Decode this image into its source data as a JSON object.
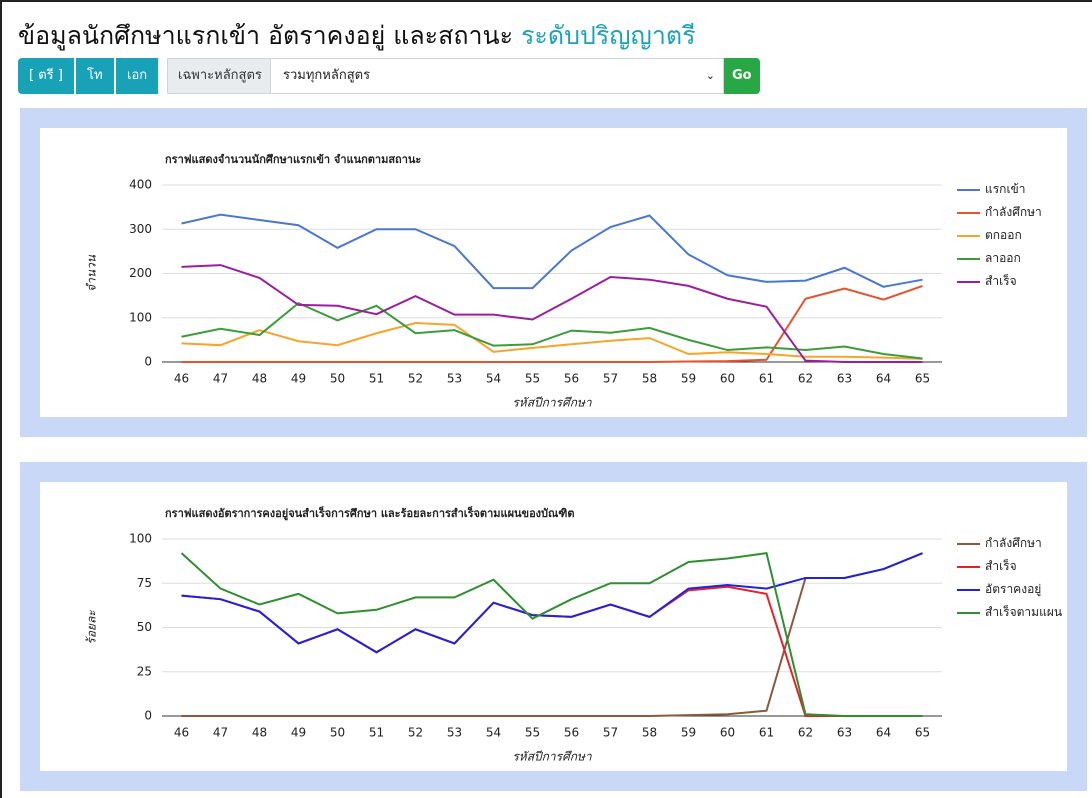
{
  "header": {
    "title": "ข้อมูลนักศึกษาแรกเข้า อัตราคงอยู่ และสถานะ",
    "title_highlight": "ระดับปริญญาตรี"
  },
  "toolbar": {
    "levels": [
      "[ ตรี ]",
      "โท",
      "เอก"
    ],
    "filter_label": "เฉพาะหลักสูตร",
    "select": "รวมทุกหลักสูตร",
    "button": "Go"
  },
  "chart_data": [
    {
      "type": "line",
      "title": "กราฟแสดงจำนวนนักศึกษาแรกเข้า จำแนกตามสถานะ",
      "xlabel": "รหัสปีการศึกษา",
      "ylabel": "จำนวน",
      "categories": [
        "46",
        "47",
        "48",
        "49",
        "50",
        "51",
        "52",
        "53",
        "54",
        "55",
        "56",
        "57",
        "58",
        "59",
        "60",
        "61",
        "62",
        "63",
        "64",
        "65"
      ],
      "ylim": [
        0,
        400
      ],
      "yticks": [
        0,
        100,
        200,
        300,
        400
      ],
      "grid": true,
      "series": [
        {
          "name": "แรกเข้า",
          "color": "#4a78d0",
          "values": [
            313,
            333,
            321,
            309,
            258,
            300,
            300,
            262,
            167,
            167,
            252,
            305,
            331,
            243,
            196,
            181,
            184,
            213,
            170,
            186
          ]
        },
        {
          "name": "กำลังศึกษา",
          "color": "#e4532d",
          "values": [
            0,
            0,
            0,
            0,
            0,
            0,
            0,
            0,
            0,
            0,
            0,
            0,
            0,
            1,
            2,
            5,
            143,
            166,
            141,
            172
          ]
        },
        {
          "name": "ตกออก",
          "color": "#f5a52a",
          "values": [
            42,
            38,
            72,
            47,
            38,
            65,
            88,
            84,
            23,
            32,
            40,
            48,
            54,
            18,
            22,
            18,
            12,
            12,
            10,
            7
          ]
        },
        {
          "name": "ลาออก",
          "color": "#3c9c3a",
          "values": [
            57,
            75,
            61,
            133,
            94,
            127,
            65,
            72,
            37,
            40,
            71,
            66,
            77,
            50,
            27,
            33,
            27,
            35,
            18,
            8
          ]
        },
        {
          "name": "สำเร็จ",
          "color": "#9a1f9e",
          "values": [
            215,
            219,
            190,
            129,
            127,
            108,
            149,
            107,
            107,
            96,
            143,
            192,
            186,
            172,
            143,
            125,
            3,
            0,
            0,
            0
          ]
        }
      ]
    },
    {
      "type": "line",
      "title": "กราฟแสดงอัตราการคงอยู่จนสำเร็จการศึกษา และร้อยละการสำเร็จตามแผนของบัณฑิต",
      "xlabel": "รหัสปีการศึกษา",
      "ylabel": "ร้อยละ",
      "categories": [
        "46",
        "47",
        "48",
        "49",
        "50",
        "51",
        "52",
        "53",
        "54",
        "55",
        "56",
        "57",
        "58",
        "59",
        "60",
        "61",
        "62",
        "63",
        "64",
        "65"
      ],
      "ylim": [
        0,
        100
      ],
      "yticks": [
        0,
        25,
        50,
        75,
        100
      ],
      "grid": true,
      "series": [
        {
          "name": "กำลังศึกษา",
          "color": "#8b5a3c",
          "values": [
            0,
            0,
            0,
            0,
            0,
            0,
            0,
            0,
            0,
            0,
            0,
            0,
            0,
            0.5,
            1,
            3,
            78,
            78,
            83,
            92
          ]
        },
        {
          "name": "สำเร็จ",
          "color": "#e8202a",
          "values": [
            68,
            66,
            59,
            41,
            49,
            36,
            49,
            41,
            64,
            57,
            56,
            63,
            56,
            71,
            73,
            69,
            0,
            0,
            0,
            0
          ]
        },
        {
          "name": "อัตราคงอยู่",
          "color": "#2222dd",
          "values": [
            68,
            66,
            59,
            41,
            49,
            36,
            49,
            41,
            64,
            57,
            56,
            63,
            56,
            72,
            74,
            72,
            78,
            78,
            83,
            92
          ]
        },
        {
          "name": "สำเร็จตามแผน",
          "color": "#2f8f2f",
          "values": [
            92,
            72,
            63,
            69,
            58,
            60,
            67,
            67,
            77,
            55,
            66,
            75,
            75,
            87,
            89,
            92,
            1,
            0,
            0,
            0
          ]
        }
      ]
    }
  ]
}
